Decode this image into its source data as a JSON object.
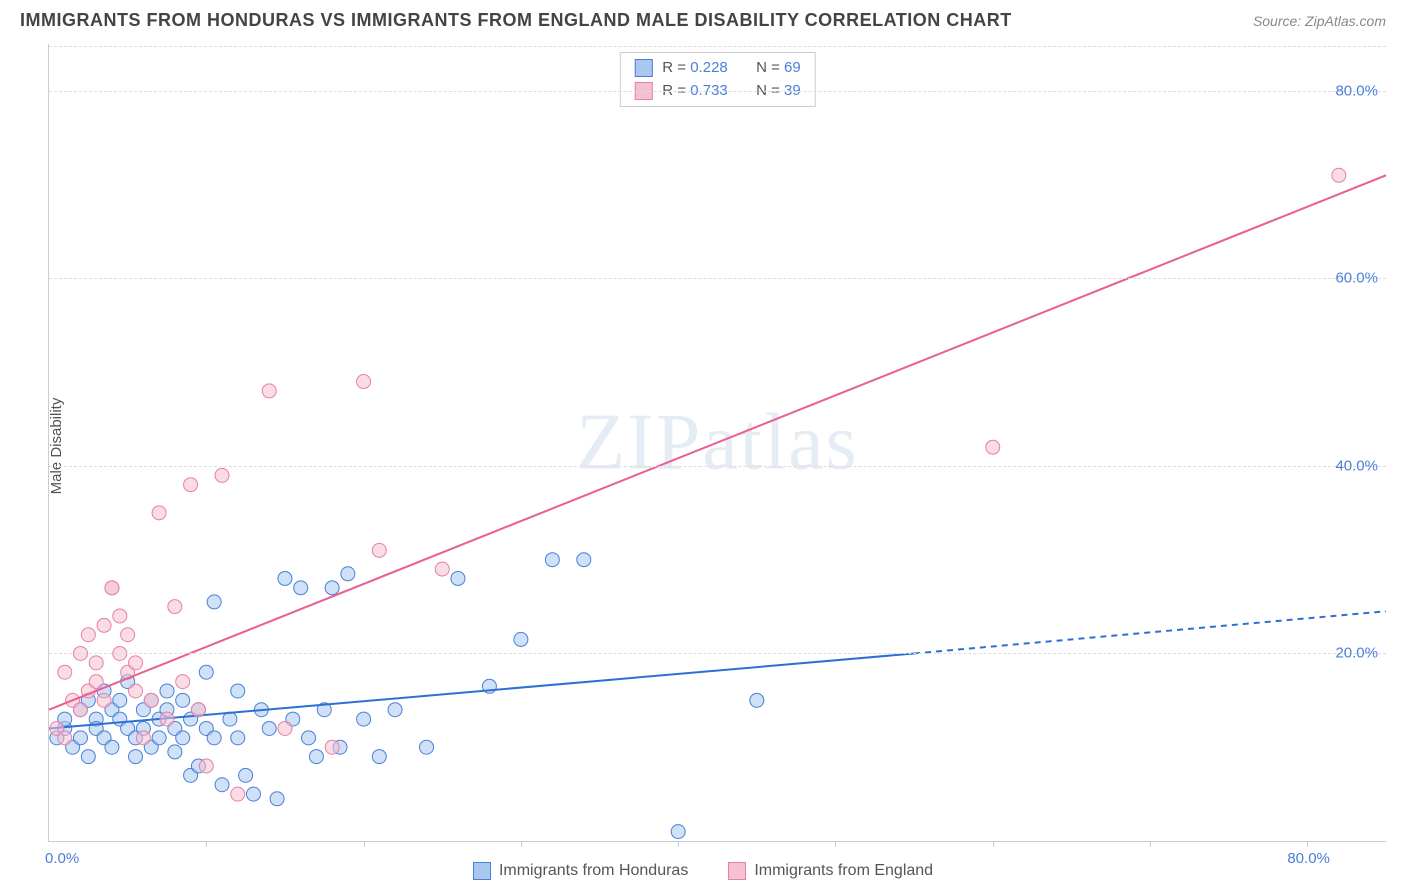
{
  "title": "IMMIGRANTS FROM HONDURAS VS IMMIGRANTS FROM ENGLAND MALE DISABILITY CORRELATION CHART",
  "source": "Source: ZipAtlas.com",
  "ylabel": "Male Disability",
  "watermark": "ZIPatlas",
  "chart": {
    "type": "scatter",
    "xlim": [
      0,
      85
    ],
    "ylim": [
      0,
      85
    ],
    "xticks_minor": [
      10,
      20,
      30,
      40,
      50,
      60,
      70,
      80
    ],
    "xtick_labels": [
      {
        "pos": 0,
        "text": "0.0%"
      },
      {
        "pos": 80,
        "text": "80.0%"
      }
    ],
    "yticks": [
      {
        "pos": 20,
        "text": "20.0%"
      },
      {
        "pos": 40,
        "text": "40.0%"
      },
      {
        "pos": 60,
        "text": "60.0%"
      },
      {
        "pos": 80,
        "text": "80.0%"
      }
    ],
    "grid_color": "#dddddd",
    "background_color": "#ffffff",
    "marker_radius": 7,
    "marker_opacity": 0.55,
    "series": [
      {
        "name": "Immigrants from Honduras",
        "color_fill": "#a8c8f0",
        "color_stroke": "#4a7fd8",
        "R": "0.228",
        "N": "69",
        "trend": {
          "x1": 0,
          "y1": 12,
          "x2": 55,
          "y2": 20,
          "x2_dash": 85,
          "y2_dash": 24.5,
          "stroke": "#2e6fd6",
          "width": 2
        },
        "points": [
          [
            0.5,
            11
          ],
          [
            1,
            12
          ],
          [
            1,
            13
          ],
          [
            1.5,
            10
          ],
          [
            2,
            14
          ],
          [
            2,
            11
          ],
          [
            2.5,
            15
          ],
          [
            2.5,
            9
          ],
          [
            3,
            13
          ],
          [
            3,
            12
          ],
          [
            3.5,
            16
          ],
          [
            3.5,
            11
          ],
          [
            4,
            14
          ],
          [
            4,
            10
          ],
          [
            4.5,
            13
          ],
          [
            4.5,
            15
          ],
          [
            5,
            12
          ],
          [
            5,
            17
          ],
          [
            5.5,
            11
          ],
          [
            5.5,
            9
          ],
          [
            6,
            14
          ],
          [
            6,
            12
          ],
          [
            6.5,
            15
          ],
          [
            6.5,
            10
          ],
          [
            7,
            13
          ],
          [
            7,
            11
          ],
          [
            7.5,
            16
          ],
          [
            7.5,
            14
          ],
          [
            8,
            12
          ],
          [
            8,
            9.5
          ],
          [
            8.5,
            15
          ],
          [
            8.5,
            11
          ],
          [
            9,
            13
          ],
          [
            9,
            7
          ],
          [
            9.5,
            14
          ],
          [
            9.5,
            8
          ],
          [
            10,
            12
          ],
          [
            10,
            18
          ],
          [
            10.5,
            25.5
          ],
          [
            10.5,
            11
          ],
          [
            11,
            6
          ],
          [
            11.5,
            13
          ],
          [
            12,
            16
          ],
          [
            12,
            11
          ],
          [
            12.5,
            7
          ],
          [
            13,
            5
          ],
          [
            13.5,
            14
          ],
          [
            14,
            12
          ],
          [
            14.5,
            4.5
          ],
          [
            15,
            28
          ],
          [
            15.5,
            13
          ],
          [
            16,
            27
          ],
          [
            16.5,
            11
          ],
          [
            17,
            9
          ],
          [
            17.5,
            14
          ],
          [
            18,
            27
          ],
          [
            18.5,
            10
          ],
          [
            19,
            28.5
          ],
          [
            20,
            13
          ],
          [
            21,
            9
          ],
          [
            22,
            14
          ],
          [
            24,
            10
          ],
          [
            26,
            28
          ],
          [
            28,
            16.5
          ],
          [
            30,
            21.5
          ],
          [
            32,
            30
          ],
          [
            34,
            30
          ],
          [
            40,
            1
          ],
          [
            45,
            15
          ]
        ]
      },
      {
        "name": "Immigrants from England",
        "color_fill": "#f5c0d0",
        "color_stroke": "#e87fa8",
        "R": "0.733",
        "N": "39",
        "trend": {
          "x1": 0,
          "y1": 14,
          "x2": 85,
          "y2": 71,
          "stroke": "#e85f90",
          "width": 2
        },
        "points": [
          [
            0.5,
            12
          ],
          [
            1,
            11
          ],
          [
            1,
            18
          ],
          [
            1.5,
            15
          ],
          [
            2,
            20
          ],
          [
            2,
            14
          ],
          [
            2.5,
            22
          ],
          [
            2.5,
            16
          ],
          [
            3,
            19
          ],
          [
            3,
            17
          ],
          [
            3.5,
            23
          ],
          [
            3.5,
            15
          ],
          [
            4,
            27
          ],
          [
            4,
            27
          ],
          [
            4.5,
            20
          ],
          [
            4.5,
            24
          ],
          [
            5,
            18
          ],
          [
            5,
            22
          ],
          [
            5.5,
            16
          ],
          [
            5.5,
            19
          ],
          [
            6,
            11
          ],
          [
            6.5,
            15
          ],
          [
            7,
            35
          ],
          [
            7.5,
            13
          ],
          [
            8,
            25
          ],
          [
            8.5,
            17
          ],
          [
            9,
            38
          ],
          [
            9.5,
            14
          ],
          [
            10,
            8
          ],
          [
            11,
            39
          ],
          [
            12,
            5
          ],
          [
            14,
            48
          ],
          [
            15,
            12
          ],
          [
            18,
            10
          ],
          [
            20,
            49
          ],
          [
            21,
            31
          ],
          [
            25,
            29
          ],
          [
            60,
            42
          ],
          [
            82,
            71
          ]
        ]
      }
    ]
  },
  "stats_box": {
    "label_R": "R =",
    "label_N": "N ="
  },
  "bottom_legend": [
    {
      "swatch_fill": "#a8c8f0",
      "swatch_stroke": "#4a7fd8",
      "label": "Immigrants from Honduras"
    },
    {
      "swatch_fill": "#f5c0d0",
      "swatch_stroke": "#e87fa8",
      "label": "Immigrants from England"
    }
  ]
}
